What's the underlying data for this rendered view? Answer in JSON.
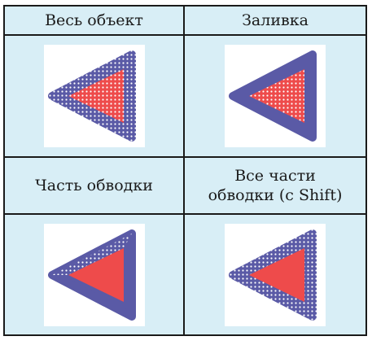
{
  "table": {
    "headers": [
      "Весь объект",
      "Заливка",
      "Часть обводки",
      "Все части\nобводки (с Shift)"
    ]
  },
  "colors": {
    "background": "#d8eef6",
    "stroke": "#5a5aa6",
    "fill": "#ee4b4b",
    "dots": "#ffffff",
    "grid_lines": "#1a1a1a"
  },
  "icons": [
    "triangle-whole-object-selected-icon",
    "triangle-fill-selected-icon",
    "triangle-stroke-part-selected-icon",
    "triangle-all-stroke-parts-selected-icon"
  ]
}
